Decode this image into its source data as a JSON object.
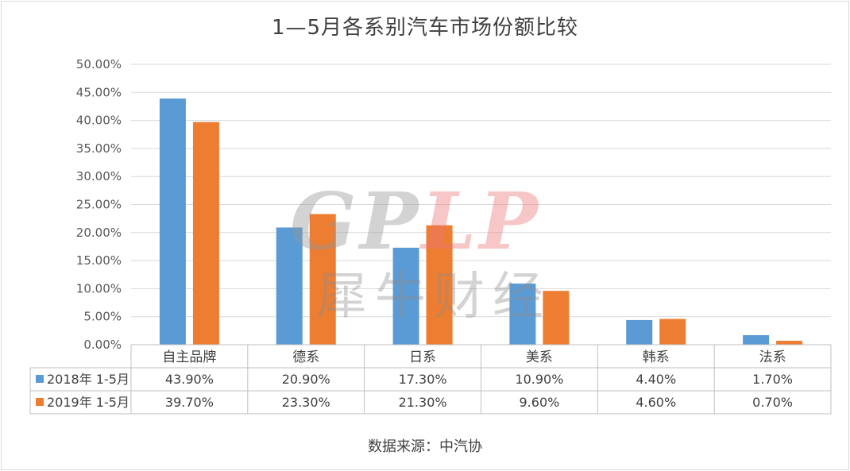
{
  "chart_data": {
    "type": "bar",
    "title": "1—5月各系别汽车市场份额比较",
    "categories": [
      "自主品牌",
      "德系",
      "日系",
      "美系",
      "韩系",
      "法系"
    ],
    "series": [
      {
        "name": "2018年 1-5月",
        "color": "#5b9bd5",
        "values": [
          43.9,
          20.9,
          17.3,
          10.9,
          4.4,
          1.7
        ],
        "labels": [
          "43.90%",
          "20.90%",
          "17.30%",
          "10.90%",
          "4.40%",
          "1.70%"
        ]
      },
      {
        "name": "2019年 1-5月",
        "color": "#ed7d31",
        "values": [
          39.7,
          23.3,
          21.3,
          9.6,
          4.6,
          0.7
        ],
        "labels": [
          "39.70%",
          "23.30%",
          "21.30%",
          "9.60%",
          "4.60%",
          "0.70%"
        ]
      }
    ],
    "ylim": [
      0,
      50
    ],
    "yticks": [
      "0.00%",
      "5.00%",
      "10.00%",
      "15.00%",
      "20.00%",
      "25.00%",
      "30.00%",
      "35.00%",
      "40.00%",
      "45.00%",
      "50.00%"
    ],
    "grid": true,
    "data_table": true
  },
  "source": "数据来源：中汽协",
  "watermark": {
    "latin_a": "GP",
    "latin_b": "LP",
    "cn": "犀牛财经"
  }
}
